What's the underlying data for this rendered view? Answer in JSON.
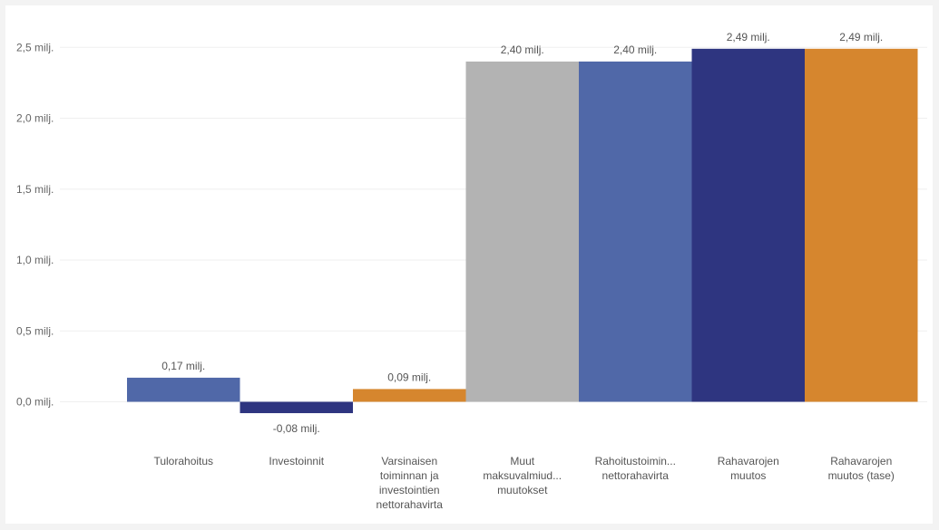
{
  "chart_data": {
    "type": "bar",
    "categories": [
      [
        "Tulorahoitus"
      ],
      [
        "Investoinnit"
      ],
      [
        "Varsinaisen",
        "toiminnan ja",
        "investointien",
        "nettorahavirta"
      ],
      [
        "Muut",
        "maksuvalmiud...",
        "muutokset"
      ],
      [
        "Rahoitustoimin...",
        "nettorahavirta"
      ],
      [
        "Rahavarojen",
        "muutos"
      ],
      [
        "Rahavarojen",
        "muutos (tase)"
      ]
    ],
    "values": [
      0.17,
      -0.08,
      0.09,
      2.4,
      2.4,
      2.49,
      2.49
    ],
    "value_labels": [
      "0,17 milj.",
      "-0,08 milj.",
      "0,09 milj.",
      "2,40 milj.",
      "2,40 milj.",
      "2,49 milj.",
      "2,49 milj."
    ],
    "colors": [
      "#5068a8",
      "#2e3580",
      "#d6862e",
      "#b3b3b3",
      "#5068a8",
      "#2e3580",
      "#d6862e"
    ],
    "yticks": [
      0,
      0.5,
      1.0,
      1.5,
      2.0,
      2.5
    ],
    "ytick_labels": [
      "0,0 milj.",
      "0,5 milj.",
      "1,0 milj.",
      "1,5 milj.",
      "2,0 milj.",
      "2,5 milj."
    ],
    "ylim": [
      -0.1,
      2.5
    ],
    "grid": true,
    "legend": "none",
    "title": "",
    "xlabel": "",
    "ylabel": ""
  }
}
